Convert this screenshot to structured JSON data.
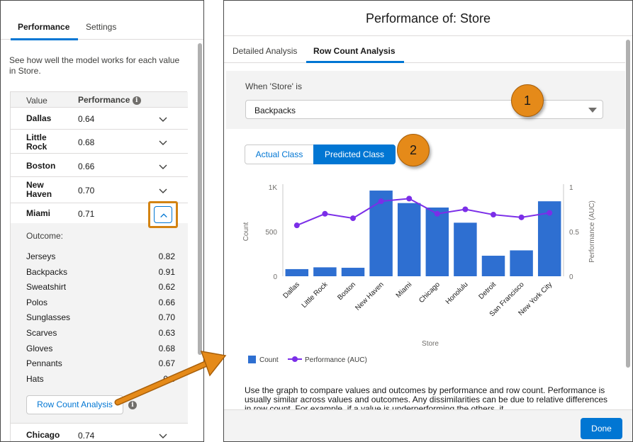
{
  "left_panel": {
    "tabs": [
      {
        "label": "Performance",
        "active": true
      },
      {
        "label": "Settings",
        "active": false
      }
    ],
    "description": "See how well the model works for each value in Store.",
    "table_headers": {
      "value": "Value",
      "performance": "Performance"
    },
    "rows": [
      {
        "name": "Dallas",
        "value": "0.64",
        "expanded": false
      },
      {
        "name": "Little Rock",
        "value": "0.68",
        "expanded": false
      },
      {
        "name": "Boston",
        "value": "0.66",
        "expanded": false
      },
      {
        "name": "New Haven",
        "value": "0.70",
        "expanded": false
      },
      {
        "name": "Miami",
        "value": "0.71",
        "expanded": true
      },
      {
        "name": "Chicago",
        "value": "0.74",
        "expanded": false
      }
    ],
    "outcome_label": "Outcome:",
    "outcomes": [
      {
        "name": "Jerseys",
        "value": "0.82"
      },
      {
        "name": "Backpacks",
        "value": "0.91"
      },
      {
        "name": "Sweatshirt",
        "value": "0.62"
      },
      {
        "name": "Polos",
        "value": "0.66"
      },
      {
        "name": "Sunglasses",
        "value": "0.70"
      },
      {
        "name": "Scarves",
        "value": "0.63"
      },
      {
        "name": "Gloves",
        "value": "0.68"
      },
      {
        "name": "Pennants",
        "value": "0.67"
      },
      {
        "name": "Hats",
        "value": "0.6"
      }
    ],
    "row_count_button": "Row Count Analysis"
  },
  "modal": {
    "title": "Performance of: Store",
    "tabs": [
      {
        "label": "Detailed Analysis",
        "active": false
      },
      {
        "label": "Row Count Analysis",
        "active": true
      }
    ],
    "filter_label": "When 'Store' is",
    "filter_value": "Backpacks",
    "class_toggle": {
      "actual": "Actual Class",
      "predicted": "Predicted Class",
      "selected": "predicted"
    },
    "description": "Use the graph to compare values and outcomes by performance and row count. Performance is usually similar across values and outcomes. Any dissimilarities can be due to relative differences in row count. For example, if a value is underperforming the others, it",
    "done_button": "Done"
  },
  "callouts": {
    "badge1": "1",
    "badge2": "2"
  },
  "colors": {
    "accent": "#0176d3",
    "bar": "#2e6fd1",
    "line": "#7b2ee8",
    "callout": "#e58a19"
  },
  "chart_data": {
    "type": "bar",
    "categories": [
      "Dallas",
      "Little Rock",
      "Boston",
      "New Haven",
      "Miami",
      "Chicago",
      "Honolulu",
      "Detroit",
      "San Francisco",
      "New York City"
    ],
    "series": [
      {
        "name": "Count",
        "type": "bar",
        "axis": "left",
        "values": [
          80,
          100,
          95,
          960,
          820,
          770,
          600,
          230,
          290,
          840
        ]
      },
      {
        "name": "Performance (AUC)",
        "type": "line",
        "axis": "right",
        "values": [
          0.57,
          0.7,
          0.65,
          0.84,
          0.87,
          0.7,
          0.75,
          0.69,
          0.66,
          0.71
        ]
      }
    ],
    "xlabel": "Store",
    "ylabel": "Count",
    "y2label": "Performance (AUC)",
    "ylim": [
      0,
      1000
    ],
    "y2lim": [
      0,
      1
    ],
    "yticks": [
      "0",
      "500",
      "1K"
    ],
    "y2ticks": [
      "0",
      "0.5",
      "1"
    ],
    "legend": "bottom-left"
  }
}
